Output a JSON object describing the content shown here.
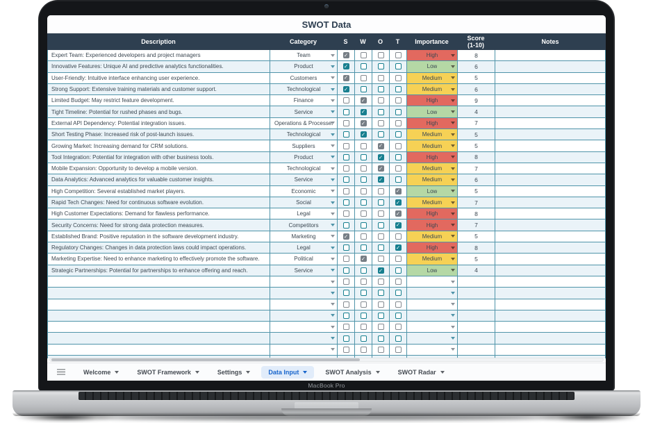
{
  "device": {
    "label": "MacBook Pro"
  },
  "sheet": {
    "title": "SWOT Data"
  },
  "table": {
    "headers": {
      "description": "Description",
      "category": "Category",
      "s": "S",
      "w": "W",
      "o": "O",
      "t": "T",
      "importance": "Importance",
      "score": "Score\n(1-10)",
      "notes": "Notes"
    },
    "rows": [
      {
        "description": "Expert Team: Experienced developers and project managers",
        "category": "Team",
        "checked": "S",
        "importance": "High",
        "score": "8",
        "notes": ""
      },
      {
        "description": "Innovative Features: Unique AI and predictive analytics functionalities.",
        "category": "Product",
        "checked": "S",
        "importance": "Low",
        "score": "6",
        "notes": ""
      },
      {
        "description": "User-Friendly: Intuitive interface enhancing user experience.",
        "category": "Customers",
        "checked": "S",
        "importance": "Medium",
        "score": "5",
        "notes": ""
      },
      {
        "description": "Strong Support: Extensive training materials and customer support.",
        "category": "Technological",
        "checked": "S",
        "importance": "Medium",
        "score": "6",
        "notes": ""
      },
      {
        "description": "Limited Budget: May restrict feature development.",
        "category": "Finance",
        "checked": "W",
        "importance": "High",
        "score": "9",
        "notes": ""
      },
      {
        "description": "Tight Timeline: Potential for rushed phases and bugs.",
        "category": "Service",
        "checked": "W",
        "importance": "Low",
        "score": "4",
        "notes": ""
      },
      {
        "description": "External API Dependency: Potential integration issues.",
        "category": "Operations & Processes",
        "checked": "W",
        "importance": "High",
        "score": "7",
        "notes": ""
      },
      {
        "description": "Short Testing Phase: Increased risk of post-launch issues.",
        "category": "Technological",
        "checked": "W",
        "importance": "Medium",
        "score": "5",
        "notes": ""
      },
      {
        "description": "Growing Market: Increasing demand for CRM solutions.",
        "category": "Suppliers",
        "checked": "O",
        "importance": "Medium",
        "score": "5",
        "notes": ""
      },
      {
        "description": "Tool Integration: Potential for integration with other business tools.",
        "category": "Product",
        "checked": "O",
        "importance": "High",
        "score": "8",
        "notes": ""
      },
      {
        "description": "Mobile Expansion: Opportunity to develop a mobile version.",
        "category": "Technological",
        "checked": "O",
        "importance": "Medium",
        "score": "7",
        "notes": ""
      },
      {
        "description": "Data Analytics: Advanced analytics for valuable customer insights.",
        "category": "Service",
        "checked": "O",
        "importance": "Medium",
        "score": "6",
        "notes": ""
      },
      {
        "description": "High Competition: Several established market players.",
        "category": "Economic",
        "checked": "T",
        "importance": "Low",
        "score": "5",
        "notes": ""
      },
      {
        "description": "Rapid Tech Changes: Need for continuous software evolution.",
        "category": "Social",
        "checked": "T",
        "importance": "Medium",
        "score": "7",
        "notes": ""
      },
      {
        "description": "High Customer Expectations: Demand for flawless performance.",
        "category": "Legal",
        "checked": "T",
        "importance": "High",
        "score": "8",
        "notes": ""
      },
      {
        "description": "Security Concerns: Need for strong data protection measures.",
        "category": "Competitors",
        "checked": "T",
        "importance": "High",
        "score": "7",
        "notes": ""
      },
      {
        "description": "Established Brand: Positive reputation in the software development industry.",
        "category": "Marketing",
        "checked": "S",
        "importance": "Medium",
        "score": "5",
        "notes": ""
      },
      {
        "description": "Regulatory Changes: Changes in data protection laws could impact operations.",
        "category": "Legal",
        "checked": "T",
        "importance": "High",
        "score": "8",
        "notes": ""
      },
      {
        "description": "Marketing Expertise: Need to enhance marketing to effectively promote the software.",
        "category": "Political",
        "checked": "W",
        "importance": "Medium",
        "score": "5",
        "notes": ""
      },
      {
        "description": "Strategic Partnerships: Potential for partnerships to enhance offering and reach.",
        "category": "Service",
        "checked": "O",
        "importance": "Low",
        "score": "4",
        "notes": ""
      }
    ],
    "empty_rows": 8
  },
  "colors": {
    "header_bg": "#2e3f50",
    "row_alt_bg": "#eaf3f8",
    "grid_line": "#4f94a9",
    "accent_teal": "#177f8f",
    "importance": {
      "High": "#e2695f",
      "Medium": "#f6d155",
      "Low": "#b5d8a5"
    },
    "active_tab_text": "#1765cc",
    "active_tab_bg": "#e1ecfa"
  },
  "tabs": {
    "items": [
      {
        "label": "Welcome",
        "active": false
      },
      {
        "label": "SWOT Framework",
        "active": false
      },
      {
        "label": "Settings",
        "active": false
      },
      {
        "label": "Data Input",
        "active": true
      },
      {
        "label": "SWOT Analysis",
        "active": false
      },
      {
        "label": "SWOT Radar",
        "active": false
      }
    ]
  }
}
